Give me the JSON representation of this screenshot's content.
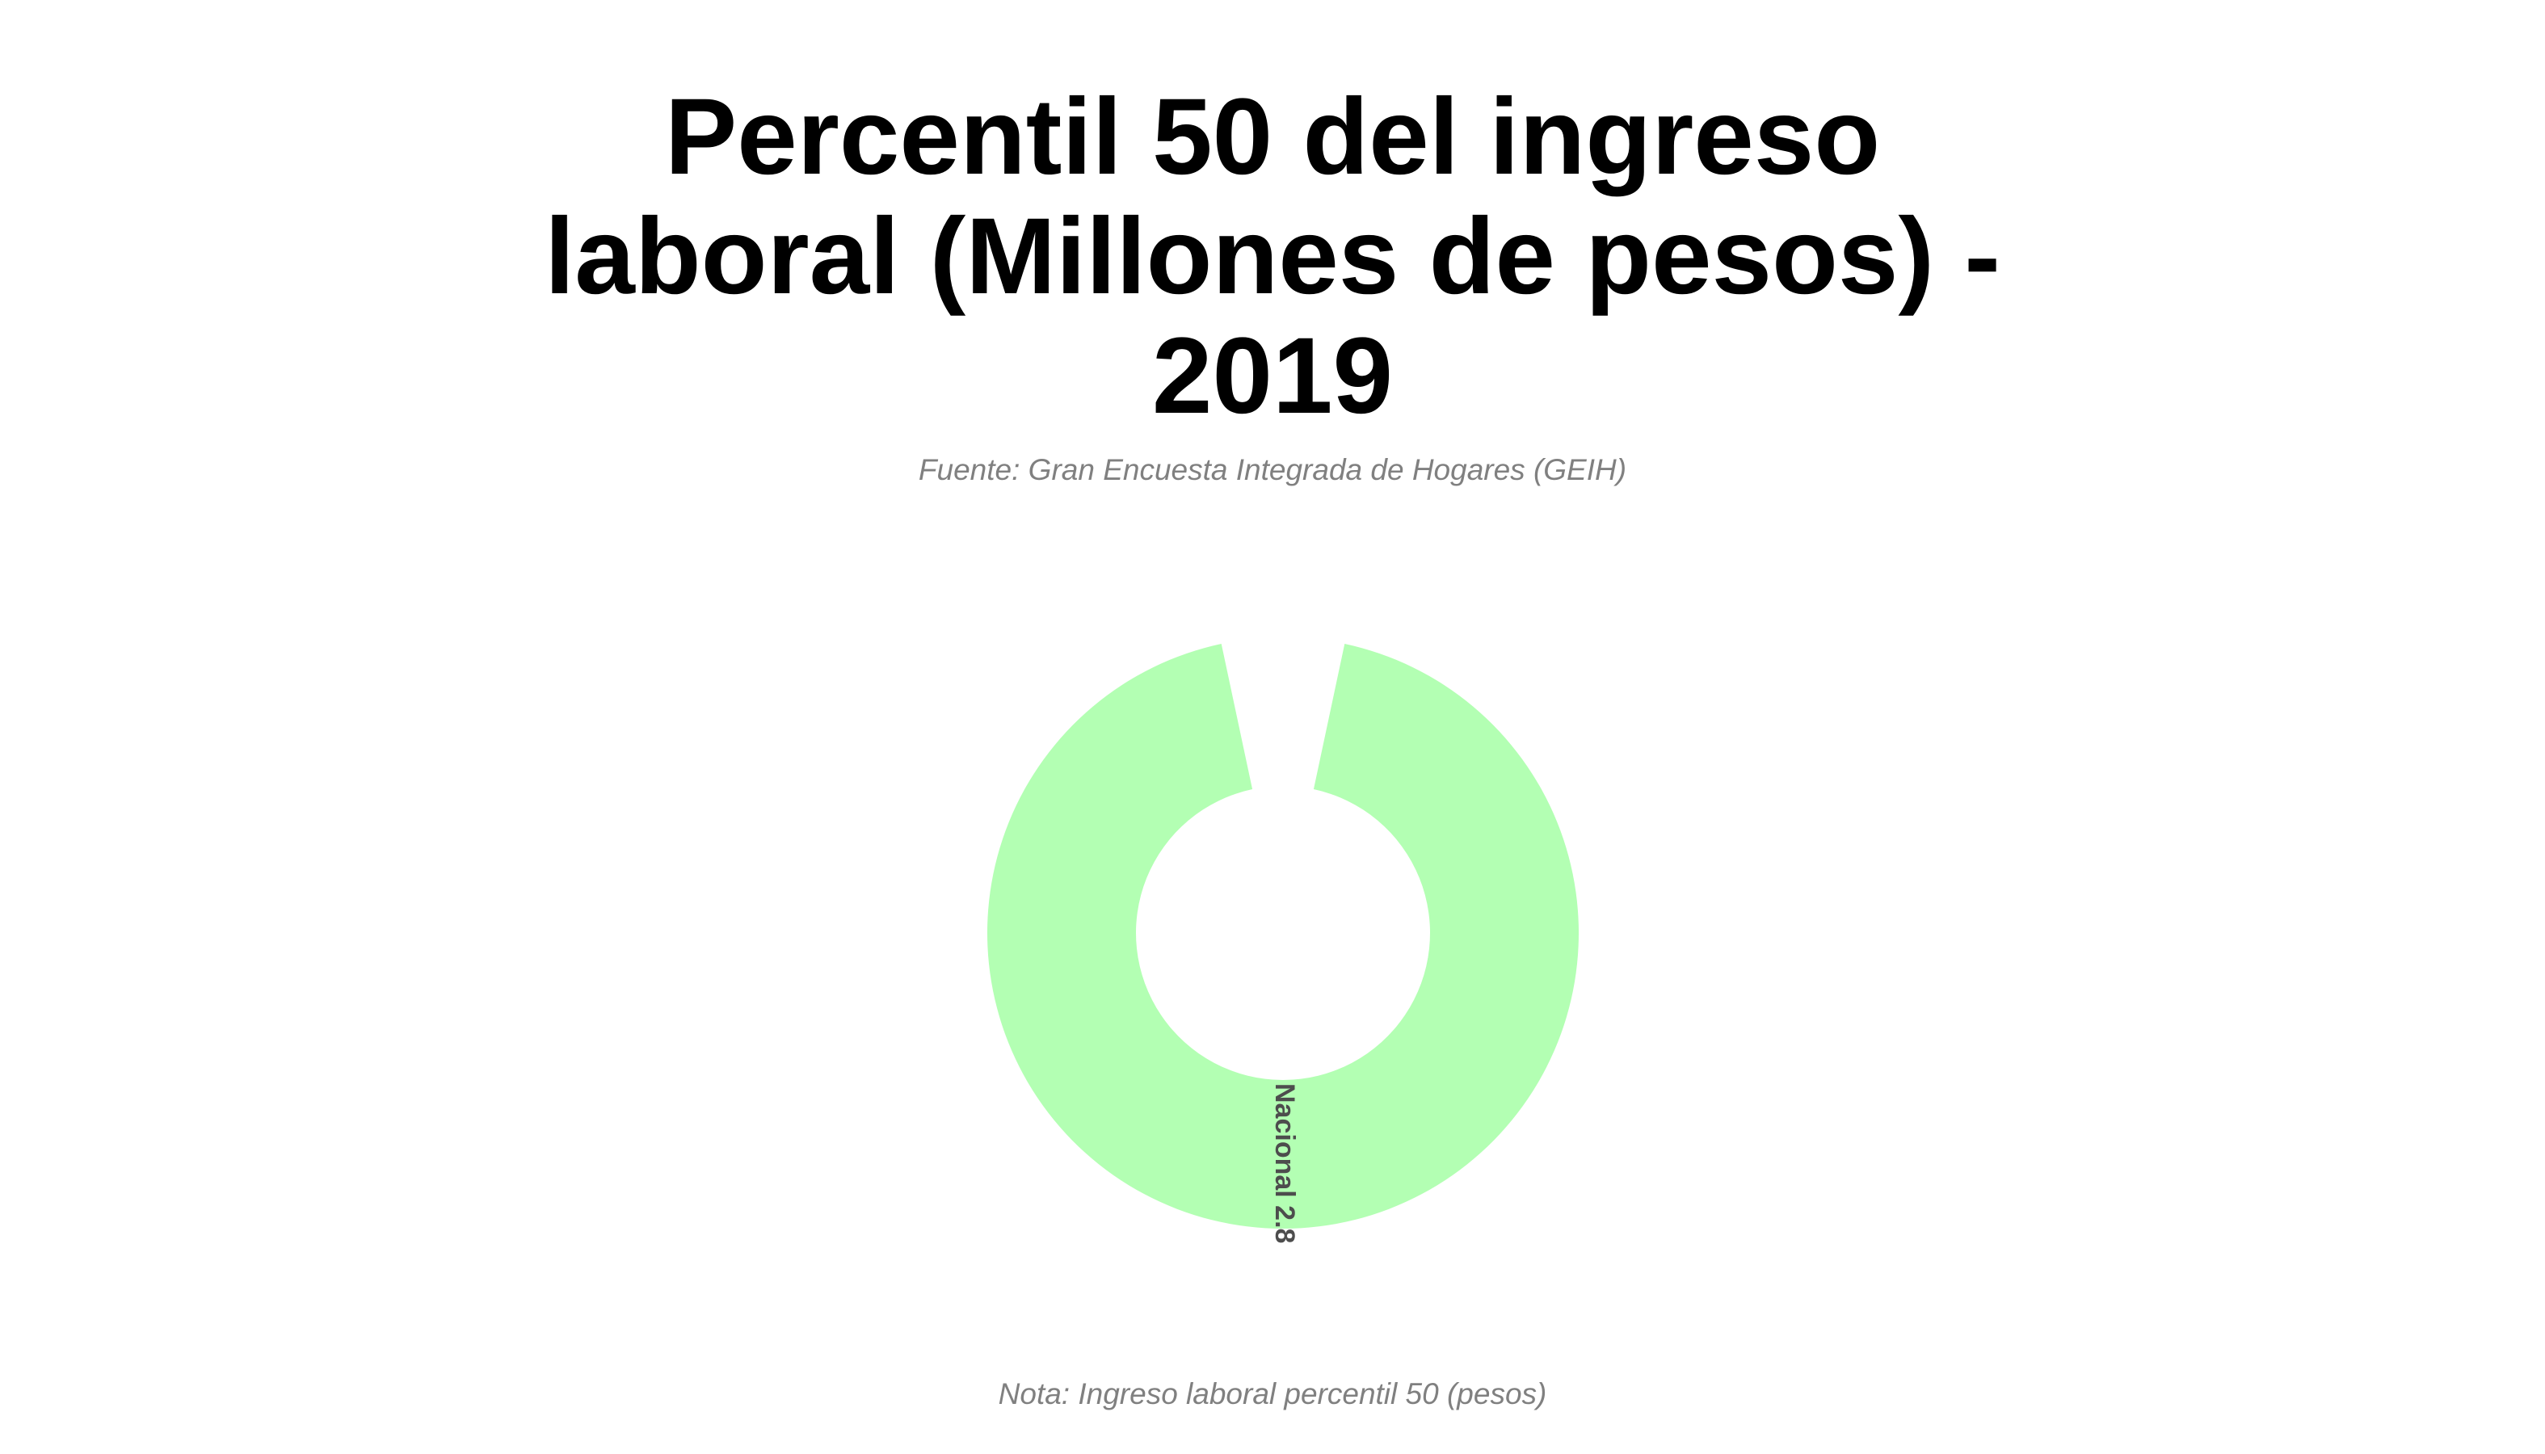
{
  "chart_data": {
    "type": "pie",
    "title": "Percentil 50 del ingreso\nlaboral (Millones de pesos) -\n2019",
    "subtitle": "Fuente: Gran Encuesta Integrada de Hogares (GEIH)",
    "note": "Nota: Ingreso laboral percentil 50 (pesos)",
    "donut": true,
    "categories": [
      "Nacional"
    ],
    "values": [
      2.8
    ],
    "labels": [
      "Nacional 2.8"
    ],
    "colors": [
      "#b3ffb3"
    ],
    "legend": "none"
  }
}
